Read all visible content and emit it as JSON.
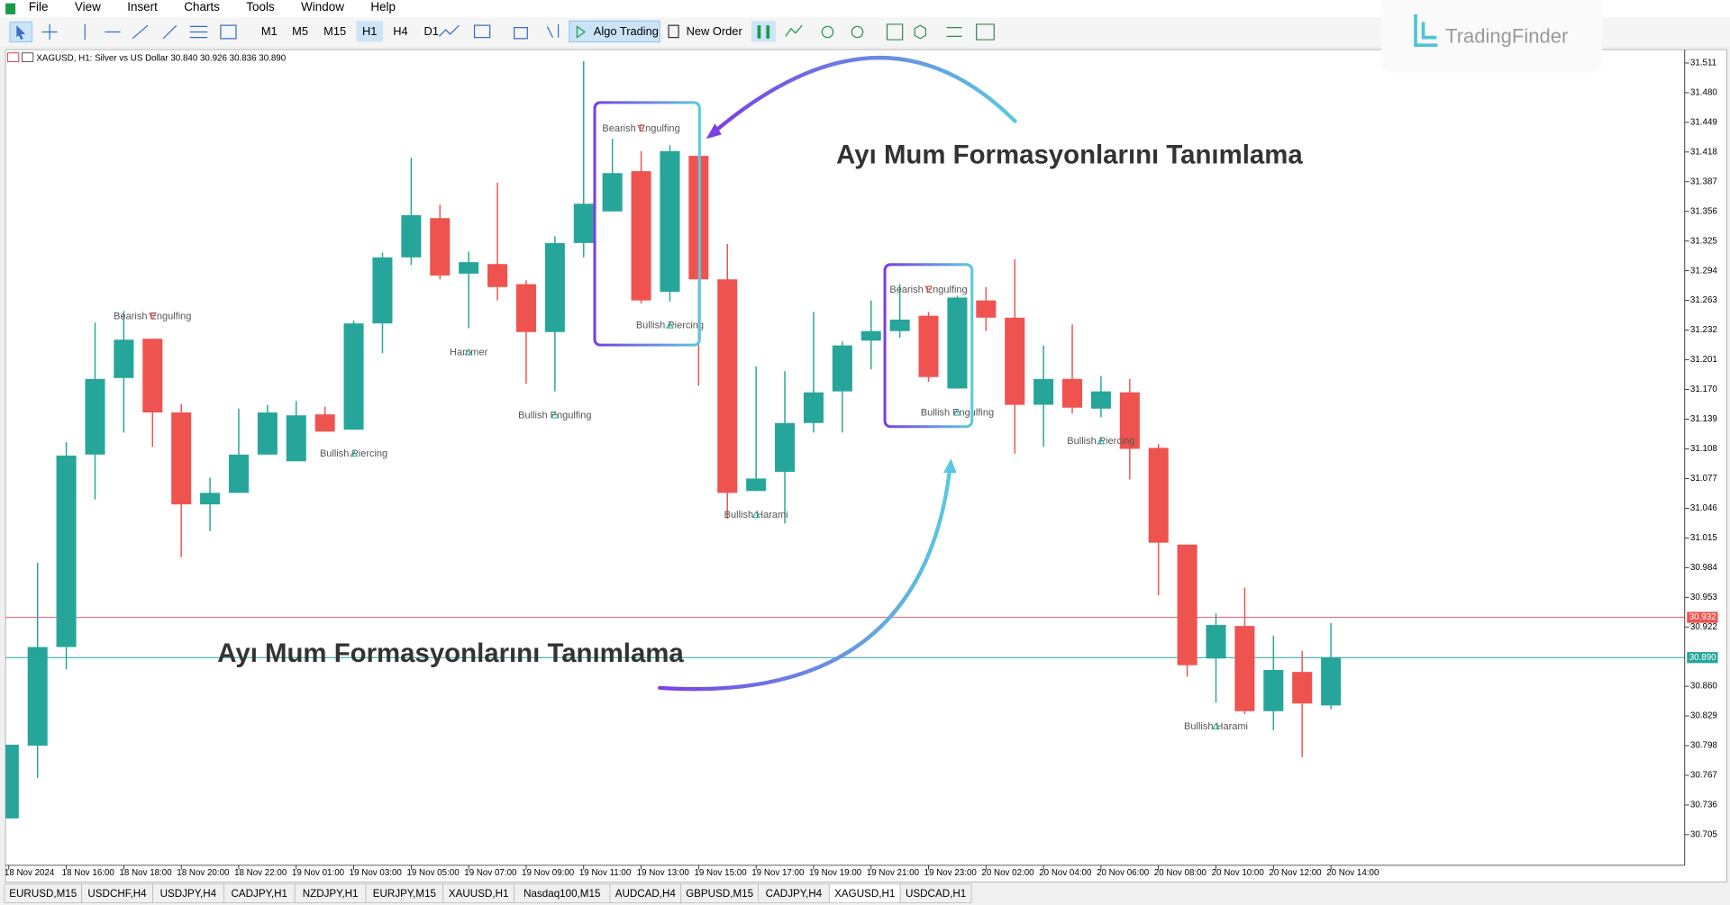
{
  "menu": [
    "File",
    "View",
    "Insert",
    "Charts",
    "Tools",
    "Window",
    "Help"
  ],
  "toolbar": {
    "timeframes": [
      "M1",
      "M5",
      "M15",
      "H1",
      "H4",
      "D1"
    ],
    "active_timeframe": 3,
    "buttons": [
      "Algo Trading",
      "New Order"
    ]
  },
  "logo": "TradingFinder",
  "chart_data": {
    "type": "candlestick",
    "title": "XAGUSD, H1:  Silver vs US Dollar  30.840 30.926 30.836 30.890",
    "categories": [
      "18 Nov 2024",
      null,
      "18 Nov 16:00",
      null,
      "18 Nov 18:00",
      null,
      "18 Nov 20:00",
      null,
      "18 Nov 22:00",
      null,
      "19 Nov 01:00",
      null,
      "19 Nov 03:00",
      null,
      "19 Nov 05:00",
      null,
      "19 Nov 07:00",
      null,
      "19 Nov 09:00",
      null,
      "19 Nov 11:00",
      null,
      "19 Nov 13:00",
      null,
      "19 Nov 15:00",
      null,
      "19 Nov 17:00",
      null,
      "19 Nov 19:00",
      null,
      "19 Nov 21:00",
      null,
      "19 Nov 23:00",
      null,
      "20 Nov 02:00",
      null,
      "20 Nov 04:00",
      null,
      "20 Nov 06:00",
      null,
      "20 Nov 08:00",
      null,
      "20 Nov 10:00",
      null,
      "20 Nov 12:00",
      null,
      "20 Nov 14:00"
    ],
    "open": [
      30.722,
      30.798,
      30.901,
      31.102,
      31.182,
      31.223,
      31.146,
      31.05,
      31.062,
      31.102,
      31.095,
      31.144,
      31.128,
      31.239,
      31.308,
      31.349,
      31.291,
      31.301,
      31.28,
      31.23,
      31.323,
      31.356,
      31.398,
      31.272,
      31.414,
      31.285,
      31.064,
      31.084,
      31.135,
      31.168,
      31.221,
      31.231,
      31.247,
      31.171,
      31.263,
      31.245,
      31.154,
      31.181,
      31.15,
      31.167,
      31.109,
      31.008,
      30.889,
      30.923,
      30.834,
      30.875,
      30.84
    ],
    "high": [
      30.799,
      30.989,
      31.115,
      31.24,
      31.252,
      31.223,
      31.155,
      31.078,
      31.15,
      31.154,
      31.158,
      31.152,
      31.242,
      31.313,
      31.412,
      31.363,
      31.314,
      31.386,
      31.284,
      31.33,
      31.513,
      31.432,
      31.419,
      31.425,
      31.414,
      31.322,
      31.194,
      31.189,
      31.251,
      31.22,
      31.263,
      31.28,
      31.251,
      31.268,
      31.277,
      31.306,
      31.216,
      31.238,
      31.184,
      31.181,
      31.113,
      31.008,
      30.936,
      30.963,
      30.913,
      30.897,
      30.926
    ],
    "low": [
      30.722,
      30.764,
      30.878,
      31.055,
      31.125,
      31.11,
      30.995,
      31.022,
      31.062,
      31.102,
      31.095,
      31.126,
      31.128,
      31.208,
      31.3,
      31.285,
      31.234,
      31.263,
      31.176,
      31.168,
      31.308,
      31.356,
      31.26,
      31.262,
      31.174,
      31.035,
      31.064,
      31.03,
      31.125,
      31.125,
      31.191,
      31.224,
      31.178,
      31.171,
      31.231,
      31.103,
      31.11,
      31.145,
      31.141,
      31.076,
      30.955,
      30.87,
      30.843,
      30.831,
      30.814,
      30.786,
      30.836
    ],
    "close": [
      30.799,
      30.901,
      31.101,
      31.181,
      31.222,
      31.146,
      31.05,
      31.062,
      31.102,
      31.146,
      31.143,
      31.126,
      31.239,
      31.308,
      31.352,
      31.289,
      31.303,
      31.277,
      31.23,
      31.323,
      31.364,
      31.396,
      31.263,
      31.419,
      31.285,
      31.062,
      31.077,
      31.135,
      31.167,
      31.216,
      31.231,
      31.243,
      31.183,
      31.266,
      31.245,
      31.154,
      31.181,
      31.151,
      31.168,
      31.108,
      31.01,
      30.882,
      30.924,
      30.834,
      30.877,
      30.842,
      30.89
    ],
    "up_color": "#26a69a",
    "down_color": "#ef5350",
    "ylim": [
      30.673,
      31.525
    ],
    "yticks": [
      31.511,
      {
        "value": 31.48,
        "label": "31.480"
      },
      31.449,
      31.418,
      31.387,
      31.356,
      31.325,
      31.294,
      31.263,
      31.232,
      31.201,
      {
        "value": 31.17,
        "label": "31.170"
      },
      31.139,
      31.108,
      31.077,
      31.046,
      31.015,
      30.984,
      30.953,
      30.922,
      {
        "value": 30.86,
        "label": "30.860"
      },
      30.829,
      30.798,
      30.767,
      30.736,
      30.705
    ],
    "price_lines": [
      {
        "value": 30.932,
        "color": "#ef5350"
      },
      {
        "value": 30.89,
        "label": "30.890",
        "color": "#26a69a"
      }
    ],
    "patterns": [
      {
        "text": "Bearish Engulfing",
        "at": 5
      },
      {
        "text": "Bullish Piercing",
        "at": 12
      },
      {
        "text": "Hammer",
        "at": 16
      },
      {
        "text": "Bullish Engulfing",
        "at": 19
      },
      {
        "text": "Bearish Engulfing",
        "at": 22
      },
      {
        "text": "Bullish Piercing",
        "at": 23
      },
      {
        "text": "Bullish Harami",
        "at": 26
      },
      {
        "text": "Bearish Engulfing",
        "at": 32
      },
      {
        "text": "Bullish Engulfing",
        "at": 33
      },
      {
        "text": "Bullish Piercing",
        "at": 38
      },
      {
        "text": "Bullish Harami",
        "at": 42
      }
    ],
    "callouts": [
      "Ayı Mum Formasyonlarını Tanımlama",
      "Ayı Mum Formasyonlarını Tanımlama"
    ]
  },
  "tabs": [
    "EURUSD,M15",
    "USDCHF,H4",
    "USDJPY,H4",
    "CADJPY,H1",
    "NZDJPY,H1",
    "EURJPY,M15",
    "XAUUSD,H1",
    "Nasdaq100,M15",
    "AUDCAD,H4",
    "GBPUSD,M15",
    "CADJPY,H4",
    "XAGUSD,H1",
    "USDCAD,H1"
  ],
  "active_tab": 11
}
